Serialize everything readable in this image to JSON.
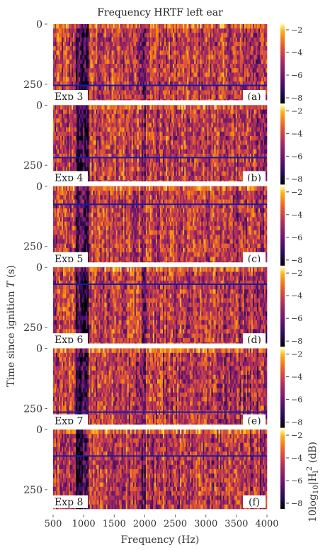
{
  "chart_data": {
    "type": "heatmap",
    "title": "Frequency HRTF left ear",
    "xlabel": "Frequency (Hz)",
    "ylabel": "Time since ignition T (s)",
    "colorbar_label": "10log10|Hl|2 (dB)",
    "x_range": [
      500,
      4000
    ],
    "x_ticks": [
      500,
      1000,
      1500,
      2000,
      2500,
      3000,
      3500,
      4000
    ],
    "y_range": [
      0,
      330
    ],
    "y_ticks": [
      0,
      250
    ],
    "y_inverted": true,
    "color_range": [
      -8.5,
      -1.5
    ],
    "color_ticks": [
      -2,
      -4,
      -6,
      -8
    ],
    "colormap": "inferno",
    "panels": [
      {
        "exp_label": "Exp 3",
        "panel_label": "(a)",
        "marker_time": 255
      },
      {
        "exp_label": "Exp 4",
        "panel_label": "(b)",
        "marker_time": 218
      },
      {
        "exp_label": "Exp 5",
        "panel_label": "(c)",
        "marker_time": 75
      },
      {
        "exp_label": "Exp 6",
        "panel_label": "(d)",
        "marker_time": 70
      },
      {
        "exp_label": "Exp 7",
        "panel_label": "(e)",
        "marker_time": 265
      },
      {
        "exp_label": "Exp 8",
        "panel_label": "(f)",
        "marker_time": 110
      }
    ],
    "marker_color": "#1a1aa8"
  }
}
